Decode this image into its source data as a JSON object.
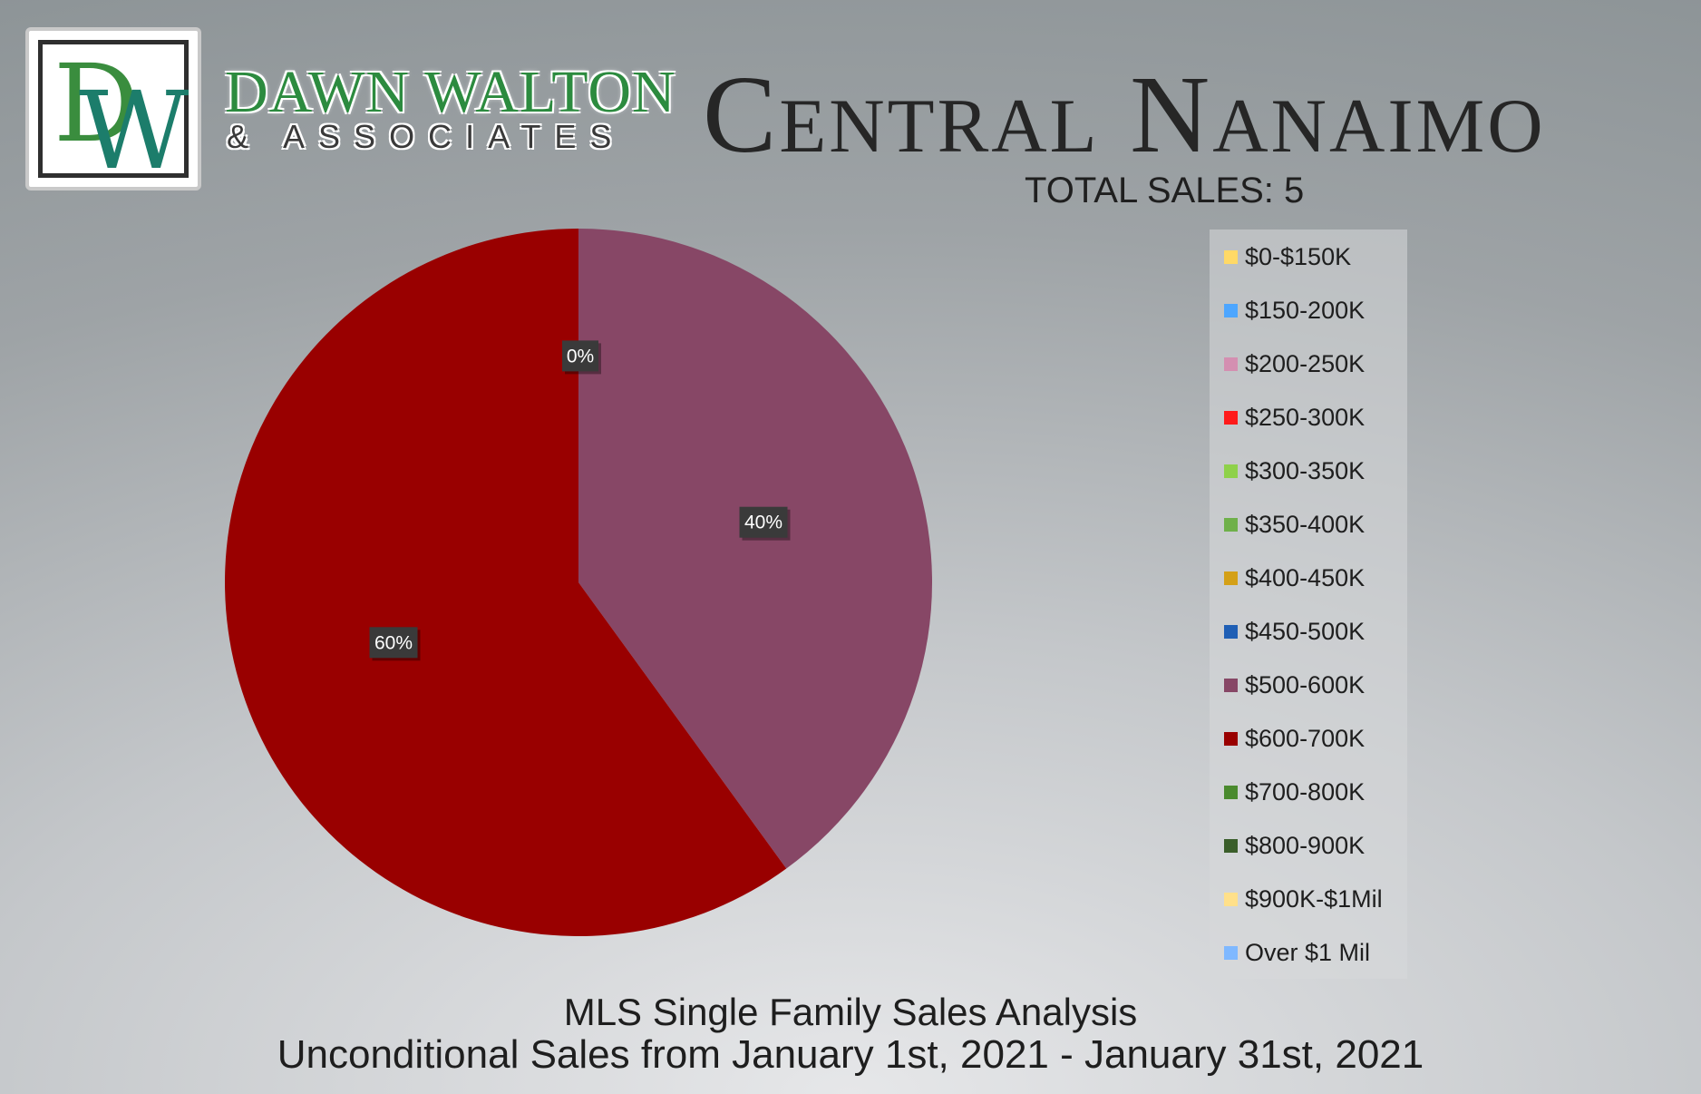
{
  "logo": {
    "monogram_d": "D",
    "monogram_w": "W",
    "brand_name": "DAWN WALTON",
    "brand_sub": "& ASSOCIATES",
    "colors": {
      "green": "#3a8d3e",
      "teal": "#1c7d6b"
    }
  },
  "title": "Central Nanaimo",
  "total_sales_label": "TOTAL SALES:  5",
  "chart_data": {
    "type": "pie",
    "categories": [
      "$0-$150K",
      "$150-200K",
      "$200-250K",
      "$250-300K",
      "$300-350K",
      "$350-400K",
      "$400-450K",
      "$450-500K",
      "$500-600K",
      "$600-700K",
      "$700-800K",
      "$800-900K",
      "$900K-$1Mil",
      "Over $1 Mil"
    ],
    "values": [
      0,
      0,
      0,
      0,
      0,
      0,
      0,
      0,
      40,
      60,
      0,
      0,
      0,
      0
    ],
    "colors": [
      "#ffd966",
      "#4da6ff",
      "#d48fb1",
      "#ff1a1a",
      "#8ed14a",
      "#6fb04a",
      "#d4a017",
      "#1f5fb5",
      "#874766",
      "#990000",
      "#4a8a2e",
      "#3a5e2a",
      "#ffe08a",
      "#7fb8ff"
    ],
    "data_labels": [
      {
        "text": "0%",
        "category": "$450-500K"
      },
      {
        "text": "40%",
        "category": "$500-600K"
      },
      {
        "text": "60%",
        "category": "$600-700K"
      }
    ],
    "legend_placement": "right"
  },
  "footer": {
    "line1": "MLS Single Family Sales Analysis",
    "line2": "Unconditional Sales from January 1st, 2021 - January 31st, 2021"
  }
}
